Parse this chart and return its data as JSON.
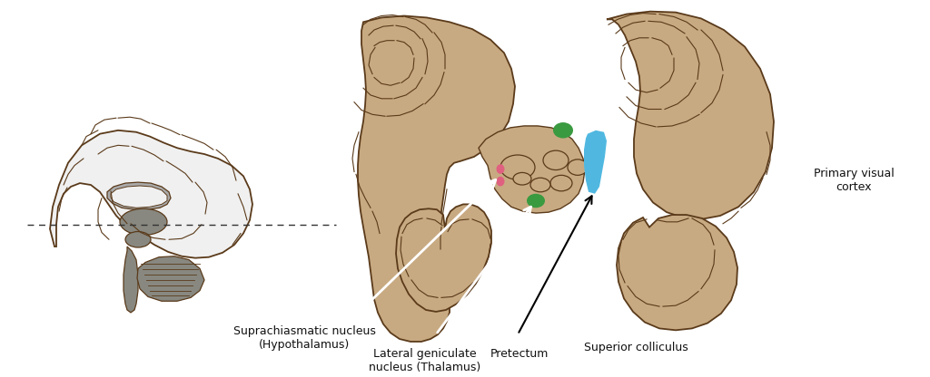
{
  "bg": "#ffffff",
  "brain_tan": "#c8aa82",
  "brain_outline": "#5a3a1a",
  "gray_dark": "#888880",
  "gray_mid": "#aaaaaa",
  "gray_light": "#cccccc",
  "white_fill": "#f0f0f0",
  "green": "#3a9a40",
  "blue": "#50b8e0",
  "pink": "#e06080",
  "text_color": "#111111",
  "fig_w": 10.24,
  "fig_h": 4.16,
  "dpi": 100,
  "labels": {
    "suprachiasmatic": "Suprachiasmatic nucleus\n(Hypothalamus)",
    "lateral_geniculate": "Lateral geniculate\nnucleus (Thalamus)",
    "pretectum": "Pretectum",
    "superior_colliculus": "Superior colliculus",
    "primary_visual": "Primary visual\ncortex"
  }
}
